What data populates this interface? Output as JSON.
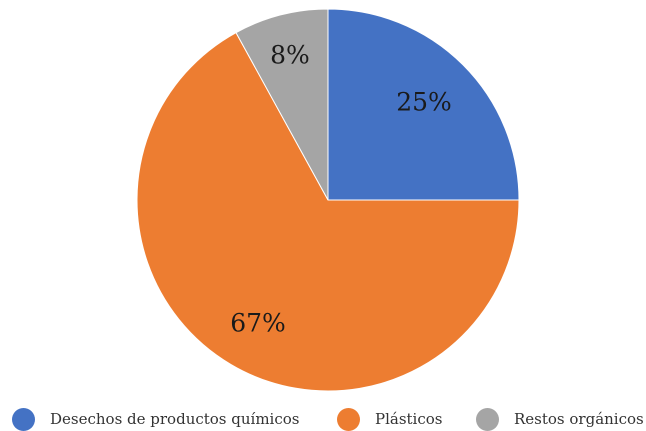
{
  "chart_data": {
    "type": "pie",
    "title": "",
    "categories": [
      "Desechos de productos químicos",
      "Plásticos",
      "Restos orgánicos"
    ],
    "values": [
      25,
      67,
      8
    ],
    "labels": [
      "25%",
      "67%",
      "8%"
    ],
    "colors": [
      "#4472C4",
      "#ED7D31",
      "#A5A5A5"
    ],
    "start_angle_deg": 0,
    "direction": "clockwise",
    "legend_position": "bottom"
  }
}
